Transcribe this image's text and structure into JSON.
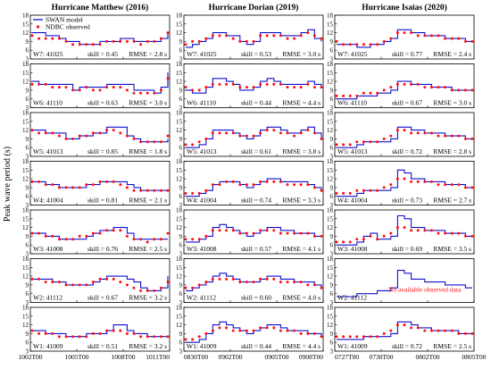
{
  "ylabel": "Peak wave period (s)",
  "legend": {
    "model": "SWAN model",
    "observed": "NDBC observed",
    "placement": "top-left of first panel"
  },
  "colors": {
    "model": "#1010d0",
    "observed": "#ff1010",
    "no_data_note": "#ff1010",
    "axis": "#000000"
  },
  "y_ticks": [
    3,
    6,
    9,
    12,
    15,
    18
  ],
  "no_data_text": "No available observed data",
  "columns": [
    {
      "title": "Hurricane Matthew (2016)",
      "x_ticks": [
        "1002T00",
        "1005T00",
        "1008T00",
        "1011T00"
      ],
      "panels": [
        {
          "label": "W7: 41025",
          "skill": "skill = 0.45",
          "rmse": "RMSE = 2.8 s",
          "model": [
            12,
            12,
            11,
            11,
            10,
            9,
            9,
            8,
            8,
            8,
            9,
            9,
            9,
            10,
            10,
            9,
            9,
            9,
            9,
            10,
            12
          ],
          "obs": [
            11,
            10,
            10,
            10,
            10,
            9,
            8,
            8,
            8,
            8,
            8,
            9,
            9,
            9,
            9,
            9,
            8,
            9,
            9,
            10,
            12
          ],
          "has_obs": true
        },
        {
          "label": "W6: 41110",
          "skill": "skill = 0.63",
          "rmse": "RMSE = 3.0 s",
          "model": [
            12,
            11,
            11,
            11,
            11,
            11,
            9,
            10,
            10,
            10,
            10,
            11,
            11,
            11,
            11,
            9,
            9,
            9,
            8,
            10,
            15
          ],
          "obs": [
            11,
            11,
            11,
            10,
            10,
            10,
            9,
            9,
            10,
            9,
            9,
            10,
            10,
            10,
            9,
            8,
            8,
            8,
            8,
            9,
            13
          ],
          "has_obs": true
        },
        {
          "label": "W5: 41013",
          "skill": "skill = 0.85",
          "rmse": "RMSE = 1.8 s",
          "model": [
            12,
            12,
            11,
            11,
            11,
            9,
            9,
            10,
            10,
            11,
            11,
            13,
            13,
            13,
            10,
            9,
            8,
            8,
            8,
            8,
            9
          ],
          "obs": [
            12,
            11,
            11,
            11,
            10,
            9,
            9,
            10,
            10,
            11,
            11,
            12,
            12,
            11,
            10,
            9,
            8,
            8,
            8,
            8,
            10
          ],
          "has_obs": true
        },
        {
          "label": "W4: 41004",
          "skill": "skill = 0.81",
          "rmse": "RMSE = 2.1 s",
          "model": [
            11,
            11,
            10,
            10,
            9,
            9,
            9,
            9,
            10,
            10,
            11,
            11,
            11,
            11,
            10,
            9,
            8,
            8,
            8,
            8,
            8
          ],
          "obs": [
            11,
            11,
            10,
            10,
            9,
            9,
            9,
            9,
            10,
            10,
            11,
            11,
            11,
            10,
            9,
            8,
            8,
            8,
            8,
            8,
            8
          ],
          "has_obs": true
        },
        {
          "label": "W3: 41008",
          "skill": "skill = 0.76",
          "rmse": "RMSE = 2.5 s",
          "model": [
            10,
            10,
            9,
            9,
            8,
            8,
            8,
            8,
            9,
            10,
            11,
            11,
            12,
            12,
            10,
            8,
            8,
            8,
            8,
            8,
            8
          ],
          "obs": [
            10,
            10,
            9,
            9,
            8,
            8,
            8,
            9,
            9,
            10,
            10,
            11,
            11,
            11,
            9,
            8,
            8,
            7,
            8,
            8,
            10
          ],
          "has_obs": true
        },
        {
          "label": "W2: 41112",
          "skill": "skill = 0.67",
          "rmse": "RMSE = 3.2 s",
          "model": [
            11,
            11,
            11,
            10,
            10,
            9,
            9,
            9,
            9,
            10,
            11,
            12,
            12,
            12,
            11,
            10,
            8,
            7,
            7,
            8,
            12
          ],
          "obs": [
            11,
            11,
            10,
            10,
            10,
            9,
            9,
            9,
            9,
            10,
            11,
            11,
            11,
            10,
            9,
            8,
            7,
            7,
            7,
            8,
            10
          ],
          "has_obs": true
        },
        {
          "label": "W1: 41009",
          "skill": "skill = 0.51",
          "rmse": "RMSE = 3.2 s",
          "model": [
            10,
            10,
            9,
            9,
            9,
            8,
            8,
            8,
            9,
            9,
            9,
            10,
            12,
            12,
            10,
            9,
            9,
            8,
            8,
            8,
            8
          ],
          "obs": [
            10,
            9,
            9,
            9,
            8,
            8,
            8,
            8,
            8,
            9,
            9,
            10,
            10,
            10,
            9,
            9,
            8,
            8,
            8,
            8,
            8
          ],
          "has_obs": true
        }
      ]
    },
    {
      "title": "Hurricane Dorian (2019)",
      "x_ticks": [
        "0830T00",
        "0902T00",
        "0905T00",
        "0908T00"
      ],
      "panels": [
        {
          "label": "W7: 41025",
          "skill": "skill = 0.53",
          "rmse": "RMSE = 3.0 s",
          "model": [
            7,
            8,
            9,
            10,
            12,
            12,
            11,
            11,
            9,
            8,
            9,
            12,
            12,
            12,
            11,
            11,
            11,
            12,
            13,
            10,
            9
          ],
          "obs": [
            8,
            9,
            9,
            10,
            11,
            11,
            11,
            10,
            9,
            9,
            9,
            11,
            11,
            11,
            11,
            10,
            10,
            11,
            12,
            11,
            10
          ],
          "has_obs": true
        },
        {
          "label": "W6: 41110",
          "skill": "skill = 0.44",
          "rmse": "RMSE = 4.4 s",
          "model": [
            9,
            8,
            8,
            10,
            13,
            13,
            12,
            11,
            9,
            9,
            10,
            12,
            13,
            12,
            11,
            11,
            11,
            11,
            12,
            11,
            10
          ],
          "obs": [
            10,
            9,
            9,
            10,
            11,
            11,
            11,
            11,
            10,
            10,
            10,
            11,
            11,
            11,
            11,
            10,
            10,
            10,
            11,
            10,
            10
          ],
          "has_obs": true
        },
        {
          "label": "W5: 41013",
          "skill": "skill = 0.61",
          "rmse": "RMSE = 3.8 s",
          "model": [
            6,
            6,
            7,
            9,
            12,
            12,
            12,
            11,
            10,
            9,
            10,
            12,
            13,
            13,
            12,
            11,
            11,
            12,
            13,
            11,
            9
          ],
          "obs": [
            7,
            7,
            8,
            9,
            11,
            11,
            11,
            11,
            10,
            10,
            10,
            11,
            12,
            12,
            11,
            11,
            10,
            11,
            12,
            11,
            9
          ],
          "has_obs": true
        },
        {
          "label": "W4: 41004",
          "skill": "skill = 0.74",
          "rmse": "RMSE = 3.3 s",
          "model": [
            6,
            6,
            7,
            8,
            10,
            11,
            11,
            11,
            10,
            9,
            10,
            11,
            12,
            12,
            11,
            11,
            11,
            11,
            10,
            9,
            8
          ],
          "obs": [
            7,
            7,
            7,
            8,
            10,
            10,
            11,
            11,
            10,
            10,
            10,
            11,
            11,
            11,
            11,
            10,
            10,
            10,
            10,
            9,
            8
          ],
          "has_obs": true
        },
        {
          "label": "W3: 41008",
          "skill": "skill = 0.57",
          "rmse": "RMSE = 4.1 s",
          "model": [
            7,
            7,
            8,
            9,
            12,
            13,
            12,
            11,
            10,
            9,
            10,
            11,
            12,
            12,
            11,
            11,
            10,
            10,
            10,
            9,
            9
          ],
          "obs": [
            8,
            8,
            8,
            9,
            11,
            11,
            11,
            11,
            10,
            10,
            10,
            11,
            11,
            11,
            10,
            10,
            10,
            10,
            10,
            9,
            9
          ],
          "has_obs": true
        },
        {
          "label": "W2: 41112",
          "skill": "skill = 0.60",
          "rmse": "RMSE = 4.0 s",
          "model": [
            7,
            8,
            9,
            10,
            12,
            13,
            12,
            11,
            10,
            10,
            10,
            11,
            12,
            12,
            11,
            11,
            10,
            10,
            10,
            9,
            8
          ],
          "obs": [
            8,
            8,
            9,
            10,
            11,
            11,
            11,
            11,
            10,
            10,
            10,
            11,
            11,
            11,
            10,
            10,
            10,
            10,
            9,
            9,
            8
          ],
          "has_obs": true
        },
        {
          "label": "W1: 41009",
          "skill": "skill = 0.44",
          "rmse": "RMSE = 4.4 s",
          "model": [
            6,
            6,
            7,
            9,
            12,
            13,
            12,
            11,
            10,
            9,
            10,
            11,
            12,
            12,
            11,
            10,
            10,
            10,
            9,
            9,
            8
          ],
          "obs": [
            7,
            7,
            8,
            9,
            10,
            11,
            11,
            10,
            10,
            10,
            10,
            11,
            11,
            11,
            10,
            10,
            10,
            9,
            9,
            9,
            8
          ],
          "has_obs": true
        }
      ]
    },
    {
      "title": "Hurricane Isaias (2020)",
      "x_ticks": [
        "0727T00",
        "0730T00",
        "0802T00",
        "0805T00"
      ],
      "panels": [
        {
          "label": "W7: 41025",
          "skill": "skill = 0.77",
          "rmse": "RMSE = 2.4 s",
          "model": [
            8,
            8,
            8,
            7,
            7,
            8,
            8,
            9,
            10,
            13,
            13,
            12,
            12,
            11,
            11,
            11,
            10,
            10,
            10,
            9,
            9
          ],
          "obs": [
            9,
            8,
            8,
            8,
            8,
            8,
            8,
            9,
            10,
            12,
            12,
            12,
            11,
            11,
            11,
            11,
            10,
            10,
            10,
            9,
            9
          ],
          "has_obs": true
        },
        {
          "label": "W6: 41110",
          "skill": "skill = 0.67",
          "rmse": "RMSE = 3.0 s",
          "model": [
            6,
            6,
            6,
            7,
            7,
            7,
            8,
            8,
            9,
            12,
            12,
            11,
            11,
            11,
            10,
            10,
            10,
            9,
            9,
            9,
            9
          ],
          "obs": [
            7,
            7,
            7,
            7,
            8,
            8,
            8,
            9,
            10,
            11,
            11,
            11,
            11,
            10,
            10,
            10,
            10,
            9,
            9,
            9,
            9
          ],
          "has_obs": true
        },
        {
          "label": "W5: 41013",
          "skill": "skill = 0.72",
          "rmse": "RMSE = 2.8 s",
          "model": [
            6,
            6,
            6,
            7,
            8,
            8,
            8,
            8,
            9,
            13,
            13,
            12,
            12,
            11,
            11,
            11,
            10,
            10,
            10,
            9,
            9
          ],
          "obs": [
            7,
            7,
            7,
            8,
            8,
            8,
            8,
            9,
            10,
            12,
            12,
            11,
            11,
            11,
            11,
            10,
            10,
            10,
            10,
            9,
            9
          ],
          "has_obs": true
        },
        {
          "label": "W4: 41004",
          "skill": "skill = 0.73",
          "rmse": "RMSE = 2.7 s",
          "model": [
            6,
            6,
            6,
            7,
            8,
            8,
            8,
            8,
            9,
            15,
            14,
            12,
            12,
            11,
            11,
            11,
            10,
            10,
            10,
            9,
            9
          ],
          "obs": [
            7,
            7,
            7,
            8,
            8,
            8,
            8,
            9,
            10,
            12,
            12,
            11,
            11,
            11,
            11,
            10,
            10,
            10,
            10,
            9,
            9
          ],
          "has_obs": true
        },
        {
          "label": "W3: 41008",
          "skill": "skill = 0.69",
          "rmse": "RMSE = 3.5 s",
          "model": [
            6,
            6,
            6,
            7,
            9,
            10,
            8,
            8,
            9,
            16,
            15,
            12,
            12,
            11,
            11,
            11,
            10,
            10,
            10,
            9,
            9
          ],
          "obs": [
            7,
            7,
            7,
            8,
            8,
            9,
            8,
            9,
            10,
            12,
            12,
            11,
            11,
            11,
            11,
            10,
            10,
            10,
            10,
            9,
            9
          ],
          "has_obs": true
        },
        {
          "label": "W2: 41112",
          "skill": "",
          "rmse": "",
          "model": [
            5,
            5,
            5,
            6,
            6,
            6,
            7,
            7,
            8,
            14,
            13,
            11,
            11,
            10,
            10,
            10,
            9,
            9,
            9,
            8,
            8
          ],
          "obs": [],
          "has_obs": false
        },
        {
          "label": "W1: 41009",
          "skill": "skill = 0.72",
          "rmse": "RMSE = 2.5 s",
          "model": [
            7,
            7,
            7,
            7,
            8,
            8,
            8,
            8,
            9,
            13,
            13,
            12,
            11,
            11,
            10,
            10,
            10,
            10,
            9,
            9,
            9
          ],
          "obs": [
            8,
            8,
            8,
            8,
            8,
            8,
            8,
            9,
            10,
            12,
            12,
            11,
            11,
            10,
            10,
            10,
            10,
            10,
            9,
            9,
            9
          ],
          "has_obs": true
        }
      ]
    }
  ],
  "chart_data": {
    "type": "line",
    "ylabel": "Peak wave period (s)",
    "ylim": [
      3,
      18
    ],
    "legend": [
      "SWAN model",
      "NDBC observed"
    ],
    "note": "3 columns x 7 panels; series per panel listed under columns[].panels[] (model = SWAN line, obs = NDBC dots)"
  }
}
